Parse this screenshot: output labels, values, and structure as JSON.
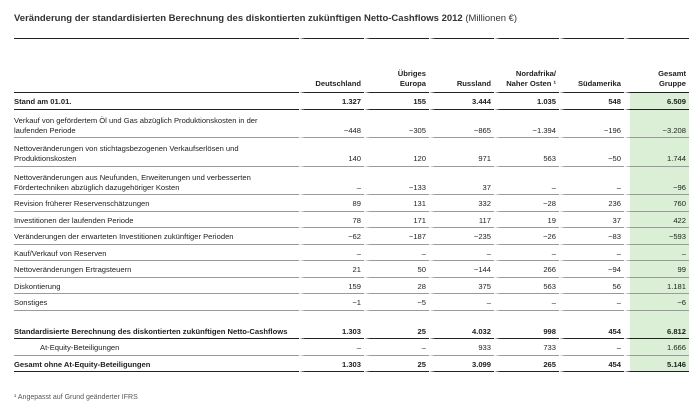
{
  "title": "Veränderung der standardisierten Berechnung des diskontierten zukünftigen Netto-Cashflows 2012",
  "unit": "(Millionen €)",
  "columns": [
    "Deutschland",
    "Übriges Europa",
    "Russland",
    "Nordafrika/ Naher Osten ¹",
    "Südamerika",
    "Gesamt Gruppe"
  ],
  "rows": [
    {
      "label": "Stand am 01.01.",
      "values": [
        "1.327",
        "155",
        "3.444",
        "1.035",
        "548",
        "6.509"
      ]
    },
    {
      "label": "Verkauf von gefördertem Öl und Gas abzüglich Produktionskosten in der laufenden Periode",
      "values": [
        "−448",
        "−305",
        "−865",
        "−1.394",
        "−196",
        "−3.208"
      ]
    },
    {
      "label": "Nettoveränderungen von stichtagsbezogenen Verkaufserlösen und Produktionskosten",
      "values": [
        "140",
        "120",
        "971",
        "563",
        "−50",
        "1.744"
      ]
    },
    {
      "label": "Nettoveränderungen aus Neufunden, Erweiterungen und verbesserten Fördertechniken abzüglich dazugehöriger Kosten",
      "values": [
        "–",
        "−133",
        "37",
        "–",
        "–",
        "−96"
      ]
    },
    {
      "label": "Revision früherer Reservenschätzungen",
      "values": [
        "89",
        "131",
        "332",
        "−28",
        "236",
        "760"
      ]
    },
    {
      "label": "Investitionen der laufenden Periode",
      "values": [
        "78",
        "171",
        "117",
        "19",
        "37",
        "422"
      ]
    },
    {
      "label": "Veränderungen der erwarteten Investitionen zukünftiger Perioden",
      "values": [
        "−62",
        "−187",
        "−235",
        "−26",
        "−83",
        "−593"
      ]
    },
    {
      "label": "Kauf/Verkauf von Reserven",
      "values": [
        "–",
        "–",
        "–",
        "–",
        "–",
        "–"
      ]
    },
    {
      "label": "Nettoveränderungen Ertragsteuern",
      "values": [
        "21",
        "50",
        "−144",
        "266",
        "−94",
        "99"
      ]
    },
    {
      "label": "Diskontierung",
      "values": [
        "159",
        "28",
        "375",
        "563",
        "56",
        "1.181"
      ]
    },
    {
      "label": "Sonstiges",
      "values": [
        "−1",
        "−5",
        "–",
        "–",
        "–",
        "−6"
      ]
    },
    {
      "label": "Standardisierte Berechnung des diskontierten zukünftigen Netto-Cashflows",
      "values": [
        "1.303",
        "25",
        "4.032",
        "998",
        "454",
        "6.812"
      ]
    },
    {
      "label": "At-Equity-Beteiligungen",
      "values": [
        "–",
        "–",
        "933",
        "733",
        "–",
        "1.666"
      ]
    },
    {
      "label": "Gesamt ohne At-Equity-Beteiligungen",
      "values": [
        "1.303",
        "25",
        "3.099",
        "265",
        "454",
        "5.146"
      ]
    }
  ],
  "footnote": "¹ Angepasst auf Grund geänderter IFRS"
}
